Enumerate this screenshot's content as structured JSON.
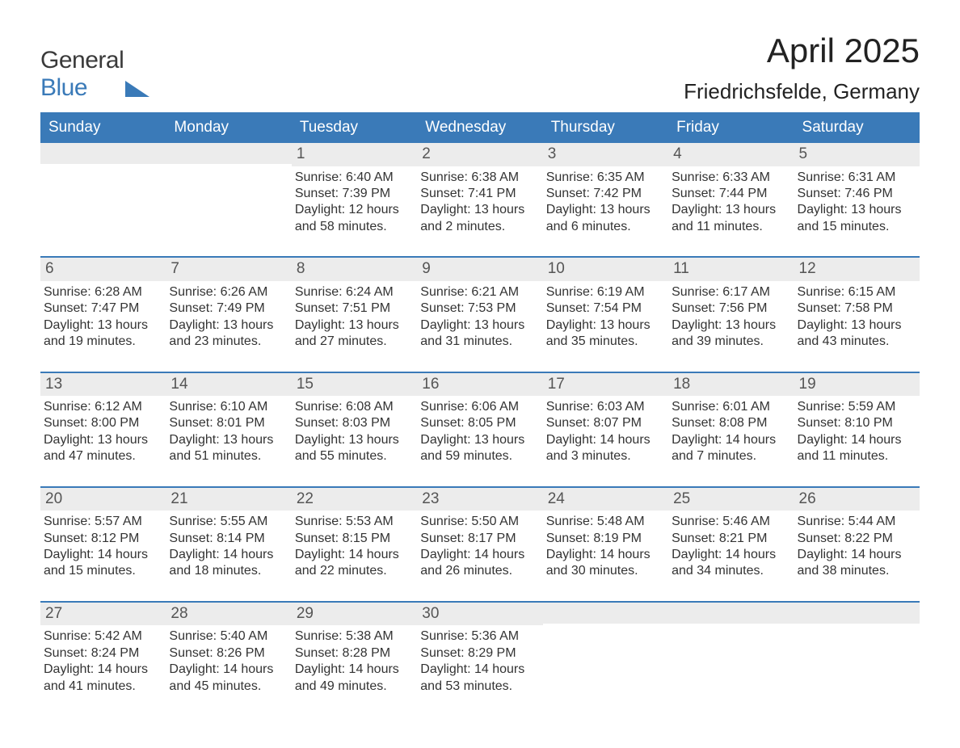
{
  "logo": {
    "text1": "General",
    "text2": "Blue"
  },
  "title": "April 2025",
  "subtitle": "Friedrichsfelde, Germany",
  "colors": {
    "header_bg": "#3a7ab8",
    "header_text": "#ffffff",
    "daybar_bg": "#ececec",
    "daybar_border_top": "#3a7ab8",
    "body_text": "#333333",
    "logo_text2": "#3a7ab8",
    "background": "#ffffff"
  },
  "typography": {
    "title_fontsize_pt": 32,
    "subtitle_fontsize_pt": 20,
    "header_fontsize_pt": 14,
    "body_fontsize_pt": 12,
    "font_family": "Arial"
  },
  "layout": {
    "columns": 7,
    "weeks": 5,
    "aspect_ratio": "1188x918"
  },
  "weekdays": [
    "Sunday",
    "Monday",
    "Tuesday",
    "Wednesday",
    "Thursday",
    "Friday",
    "Saturday"
  ],
  "weeks": [
    [
      {
        "day": "",
        "lines": []
      },
      {
        "day": "",
        "lines": []
      },
      {
        "day": "1",
        "lines": [
          "Sunrise: 6:40 AM",
          "Sunset: 7:39 PM",
          "Daylight: 12 hours",
          "and 58 minutes."
        ]
      },
      {
        "day": "2",
        "lines": [
          "Sunrise: 6:38 AM",
          "Sunset: 7:41 PM",
          "Daylight: 13 hours",
          "and 2 minutes."
        ]
      },
      {
        "day": "3",
        "lines": [
          "Sunrise: 6:35 AM",
          "Sunset: 7:42 PM",
          "Daylight: 13 hours",
          "and 6 minutes."
        ]
      },
      {
        "day": "4",
        "lines": [
          "Sunrise: 6:33 AM",
          "Sunset: 7:44 PM",
          "Daylight: 13 hours",
          "and 11 minutes."
        ]
      },
      {
        "day": "5",
        "lines": [
          "Sunrise: 6:31 AM",
          "Sunset: 7:46 PM",
          "Daylight: 13 hours",
          "and 15 minutes."
        ]
      }
    ],
    [
      {
        "day": "6",
        "lines": [
          "Sunrise: 6:28 AM",
          "Sunset: 7:47 PM",
          "Daylight: 13 hours",
          "and 19 minutes."
        ]
      },
      {
        "day": "7",
        "lines": [
          "Sunrise: 6:26 AM",
          "Sunset: 7:49 PM",
          "Daylight: 13 hours",
          "and 23 minutes."
        ]
      },
      {
        "day": "8",
        "lines": [
          "Sunrise: 6:24 AM",
          "Sunset: 7:51 PM",
          "Daylight: 13 hours",
          "and 27 minutes."
        ]
      },
      {
        "day": "9",
        "lines": [
          "Sunrise: 6:21 AM",
          "Sunset: 7:53 PM",
          "Daylight: 13 hours",
          "and 31 minutes."
        ]
      },
      {
        "day": "10",
        "lines": [
          "Sunrise: 6:19 AM",
          "Sunset: 7:54 PM",
          "Daylight: 13 hours",
          "and 35 minutes."
        ]
      },
      {
        "day": "11",
        "lines": [
          "Sunrise: 6:17 AM",
          "Sunset: 7:56 PM",
          "Daylight: 13 hours",
          "and 39 minutes."
        ]
      },
      {
        "day": "12",
        "lines": [
          "Sunrise: 6:15 AM",
          "Sunset: 7:58 PM",
          "Daylight: 13 hours",
          "and 43 minutes."
        ]
      }
    ],
    [
      {
        "day": "13",
        "lines": [
          "Sunrise: 6:12 AM",
          "Sunset: 8:00 PM",
          "Daylight: 13 hours",
          "and 47 minutes."
        ]
      },
      {
        "day": "14",
        "lines": [
          "Sunrise: 6:10 AM",
          "Sunset: 8:01 PM",
          "Daylight: 13 hours",
          "and 51 minutes."
        ]
      },
      {
        "day": "15",
        "lines": [
          "Sunrise: 6:08 AM",
          "Sunset: 8:03 PM",
          "Daylight: 13 hours",
          "and 55 minutes."
        ]
      },
      {
        "day": "16",
        "lines": [
          "Sunrise: 6:06 AM",
          "Sunset: 8:05 PM",
          "Daylight: 13 hours",
          "and 59 minutes."
        ]
      },
      {
        "day": "17",
        "lines": [
          "Sunrise: 6:03 AM",
          "Sunset: 8:07 PM",
          "Daylight: 14 hours",
          "and 3 minutes."
        ]
      },
      {
        "day": "18",
        "lines": [
          "Sunrise: 6:01 AM",
          "Sunset: 8:08 PM",
          "Daylight: 14 hours",
          "and 7 minutes."
        ]
      },
      {
        "day": "19",
        "lines": [
          "Sunrise: 5:59 AM",
          "Sunset: 8:10 PM",
          "Daylight: 14 hours",
          "and 11 minutes."
        ]
      }
    ],
    [
      {
        "day": "20",
        "lines": [
          "Sunrise: 5:57 AM",
          "Sunset: 8:12 PM",
          "Daylight: 14 hours",
          "and 15 minutes."
        ]
      },
      {
        "day": "21",
        "lines": [
          "Sunrise: 5:55 AM",
          "Sunset: 8:14 PM",
          "Daylight: 14 hours",
          "and 18 minutes."
        ]
      },
      {
        "day": "22",
        "lines": [
          "Sunrise: 5:53 AM",
          "Sunset: 8:15 PM",
          "Daylight: 14 hours",
          "and 22 minutes."
        ]
      },
      {
        "day": "23",
        "lines": [
          "Sunrise: 5:50 AM",
          "Sunset: 8:17 PM",
          "Daylight: 14 hours",
          "and 26 minutes."
        ]
      },
      {
        "day": "24",
        "lines": [
          "Sunrise: 5:48 AM",
          "Sunset: 8:19 PM",
          "Daylight: 14 hours",
          "and 30 minutes."
        ]
      },
      {
        "day": "25",
        "lines": [
          "Sunrise: 5:46 AM",
          "Sunset: 8:21 PM",
          "Daylight: 14 hours",
          "and 34 minutes."
        ]
      },
      {
        "day": "26",
        "lines": [
          "Sunrise: 5:44 AM",
          "Sunset: 8:22 PM",
          "Daylight: 14 hours",
          "and 38 minutes."
        ]
      }
    ],
    [
      {
        "day": "27",
        "lines": [
          "Sunrise: 5:42 AM",
          "Sunset: 8:24 PM",
          "Daylight: 14 hours",
          "and 41 minutes."
        ]
      },
      {
        "day": "28",
        "lines": [
          "Sunrise: 5:40 AM",
          "Sunset: 8:26 PM",
          "Daylight: 14 hours",
          "and 45 minutes."
        ]
      },
      {
        "day": "29",
        "lines": [
          "Sunrise: 5:38 AM",
          "Sunset: 8:28 PM",
          "Daylight: 14 hours",
          "and 49 minutes."
        ]
      },
      {
        "day": "30",
        "lines": [
          "Sunrise: 5:36 AM",
          "Sunset: 8:29 PM",
          "Daylight: 14 hours",
          "and 53 minutes."
        ]
      },
      {
        "day": "",
        "lines": []
      },
      {
        "day": "",
        "lines": []
      },
      {
        "day": "",
        "lines": []
      }
    ]
  ]
}
